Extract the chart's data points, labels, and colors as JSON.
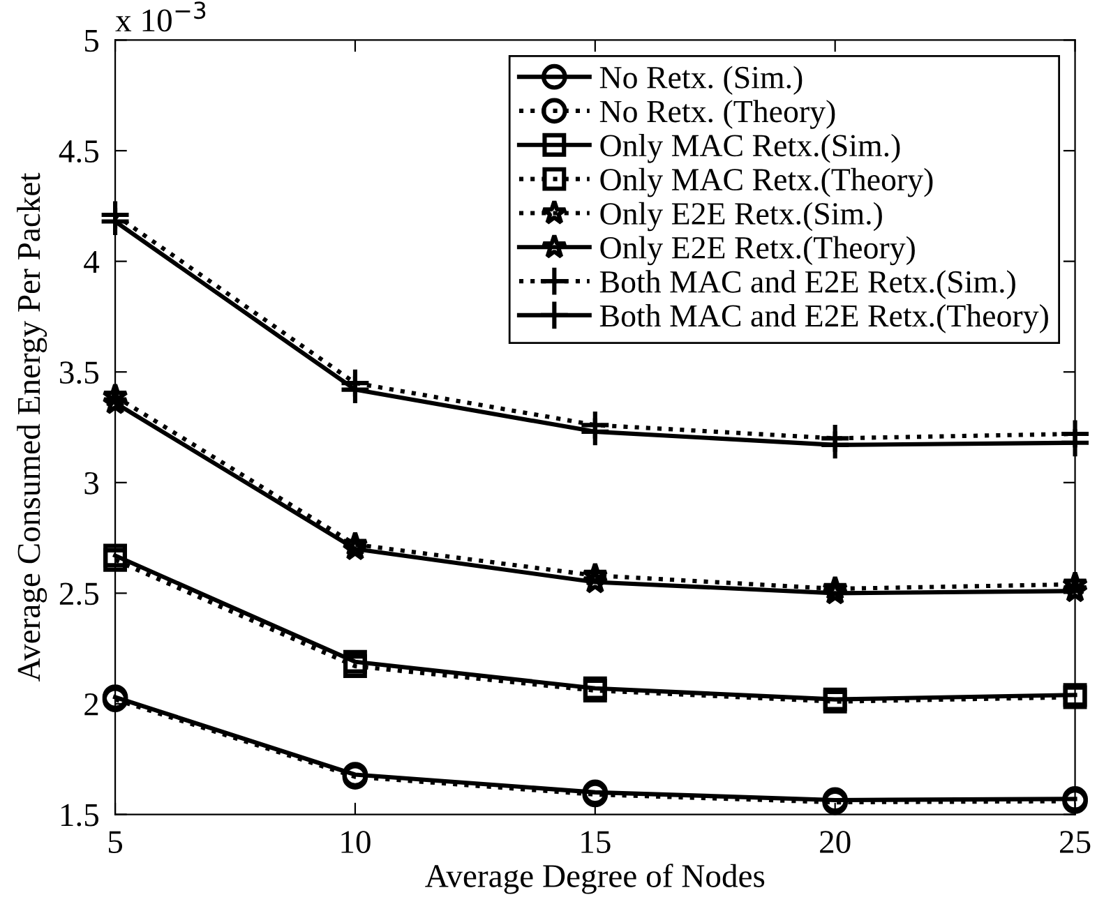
{
  "chart_data": {
    "type": "line",
    "xlabel": "Average Degree of Nodes",
    "ylabel": "Average Consumed Energy Per Packet",
    "x": [
      5,
      10,
      15,
      20,
      25
    ],
    "xlim": [
      5,
      25
    ],
    "xticks": [
      5,
      10,
      15,
      20,
      25
    ],
    "ylim": [
      1.5,
      5
    ],
    "yticks": [
      1.5,
      2,
      2.5,
      3,
      3.5,
      4,
      4.5,
      5
    ],
    "annotations": [
      "x 10$^{−3}$"
    ],
    "grid": false,
    "legend": "top right",
    "series": [
      {
        "name": "No Retx. (Sim.)",
        "color": "#000000",
        "marker": "circle",
        "line_style": "solid",
        "values": [
          2.03,
          1.68,
          1.6,
          1.565,
          1.57
        ]
      },
      {
        "name": "No Retx. (Theory)",
        "color": "#000000",
        "marker": "circle",
        "line_style": "dotted",
        "values": [
          2.02,
          1.67,
          1.59,
          1.555,
          1.56
        ]
      },
      {
        "name": "Only MAC Retx.(Sim.)",
        "color": "#000000",
        "marker": "square",
        "line_style": "solid",
        "values": [
          2.67,
          2.19,
          2.07,
          2.02,
          2.04
        ]
      },
      {
        "name": "Only MAC Retx.(Theory)",
        "color": "#000000",
        "marker": "square",
        "line_style": "dotted",
        "values": [
          2.65,
          2.17,
          2.06,
          2.01,
          2.03
        ]
      },
      {
        "name": "Only E2E Retx.(Sim.)",
        "color": "#000000",
        "marker": "star",
        "line_style": "dotted",
        "values": [
          3.39,
          2.72,
          2.58,
          2.52,
          2.54
        ]
      },
      {
        "name": "Only E2E Retx.(Theory)",
        "color": "#000000",
        "marker": "star",
        "line_style": "solid",
        "values": [
          3.36,
          2.7,
          2.55,
          2.5,
          2.51
        ]
      },
      {
        "name": "Both MAC and E2E Retx.(Sim.)",
        "color": "#000000",
        "marker": "cross",
        "line_style": "dotted",
        "values": [
          4.21,
          3.45,
          3.26,
          3.2,
          3.22
        ]
      },
      {
        "name": "Both MAC and E2E Retx.(Theory)",
        "color": "#000000",
        "marker": "cross",
        "line_style": "solid",
        "values": [
          4.18,
          3.42,
          3.23,
          3.17,
          3.18
        ]
      }
    ]
  }
}
